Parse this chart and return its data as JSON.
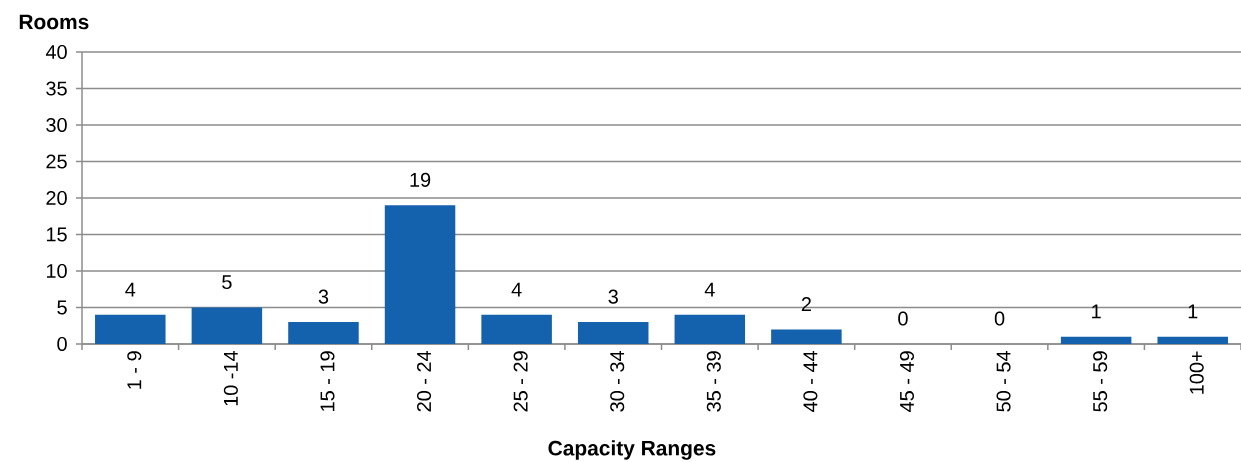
{
  "chart_data": {
    "type": "bar",
    "ylabel": "Rooms",
    "xlabel": "Capacity Ranges",
    "categories": [
      "1 - 9",
      "10 -14",
      "15 - 19",
      "20 - 24",
      "25 - 29",
      "30 - 34",
      "35 - 39",
      "40 - 44",
      "45 - 49",
      "50 - 54",
      "55 - 59",
      "100+"
    ],
    "values": [
      4,
      5,
      3,
      19,
      4,
      3,
      4,
      2,
      0,
      0,
      1,
      1
    ],
    "color": "#1461ad",
    "ylim": [
      0,
      40
    ],
    "yticks": [
      0,
      5,
      10,
      15,
      20,
      25,
      30,
      35,
      40
    ],
    "grid": "y",
    "data_labels": true
  }
}
